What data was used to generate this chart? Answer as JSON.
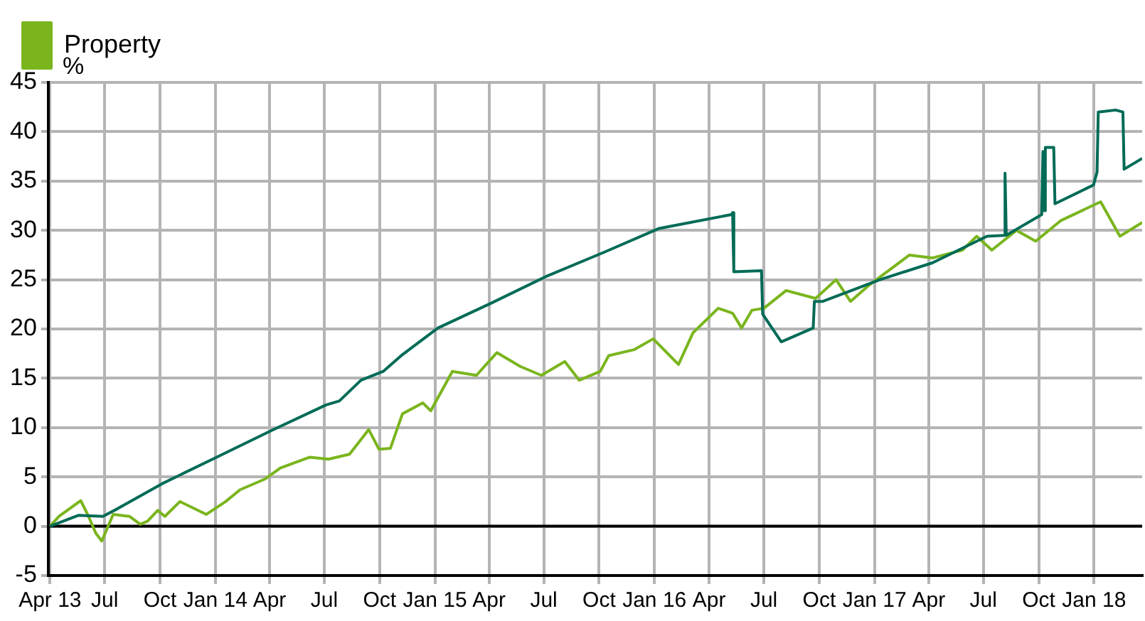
{
  "chart_data": {
    "type": "line",
    "ylabel": "%",
    "legend": "top left",
    "grid": true,
    "marker": "none",
    "line_style": "solid",
    "xlim": [
      "2013-03-29",
      "2018-03-22"
    ],
    "xticks": [
      {
        "value": "2013-04-01",
        "label": "Apr 13"
      },
      {
        "value": "2013-07-01",
        "label": "Jul"
      },
      {
        "value": "2013-10-01",
        "label": "Oct"
      },
      {
        "value": "2014-01-01",
        "label": "Jan 14"
      },
      {
        "value": "2014-04-01",
        "label": "Apr"
      },
      {
        "value": "2014-07-01",
        "label": "Jul"
      },
      {
        "value": "2014-10-01",
        "label": "Oct"
      },
      {
        "value": "2015-01-01",
        "label": "Jan 15"
      },
      {
        "value": "2015-04-01",
        "label": "Apr"
      },
      {
        "value": "2015-07-01",
        "label": "Jul"
      },
      {
        "value": "2015-10-01",
        "label": "Oct"
      },
      {
        "value": "2016-01-01",
        "label": "Jan 16"
      },
      {
        "value": "2016-04-01",
        "label": "Apr"
      },
      {
        "value": "2016-07-01",
        "label": "Jul"
      },
      {
        "value": "2016-10-01",
        "label": "Oct"
      },
      {
        "value": "2017-01-01",
        "label": "Jan 17"
      },
      {
        "value": "2017-04-01",
        "label": "Apr"
      },
      {
        "value": "2017-07-01",
        "label": "Jul"
      },
      {
        "value": "2017-10-01",
        "label": "Oct"
      },
      {
        "value": "2018-01-01",
        "label": "Jan 18"
      }
    ],
    "ylim": [
      -5,
      45
    ],
    "yticks": [
      -5,
      0,
      5,
      10,
      15,
      20,
      25,
      30,
      35,
      40,
      45
    ],
    "series": [
      {
        "color": "#006b56",
        "x": [
          "2013-04-01",
          "2013-05-18",
          "2013-06-28",
          "2013-07-23",
          "2013-10-04",
          "2014-01-03",
          "2014-04-04",
          "2014-07-04",
          "2014-07-26",
          "2014-08-31",
          "2014-10-07",
          "2014-11-08",
          "2015-01-06",
          "2015-04-04",
          "2015-07-04",
          "2015-10-10",
          "2016-01-09",
          "2016-05-08",
          "2016-05-10",
          "2016-05-12",
          "2016-06-27",
          "2016-06-29",
          "2016-07-30",
          "2016-09-21",
          "2016-09-23",
          "2016-10-07",
          "2017-01-10",
          "2017-04-07",
          "2017-07-07",
          "2017-08-05",
          "2017-08-06",
          "2017-08-08",
          "2017-10-06",
          "2017-10-08",
          "2017-10-10",
          "2017-10-12",
          "2017-10-26",
          "2017-10-28",
          "2017-12-31",
          "2018-01-06",
          "2018-01-08",
          "2018-02-06",
          "2018-02-18",
          "2018-02-20",
          "2018-03-22"
        ],
        "values": [
          0,
          1.1,
          1.0,
          1.8,
          4.3,
          7.0,
          9.7,
          12.3,
          12.7,
          14.8,
          15.7,
          17.4,
          20.1,
          22.6,
          25.3,
          27.8,
          30.2,
          31.6,
          31.8,
          25.8,
          25.9,
          21.5,
          18.7,
          20.1,
          22.8,
          22.8,
          25.0,
          26.7,
          29.4,
          29.5,
          35.8,
          29.5,
          31.6,
          38.0,
          32.0,
          38.4,
          38.4,
          32.7,
          34.6,
          35.9,
          42.0,
          42.2,
          42.0,
          36.2,
          37.3
        ]
      },
      {
        "name": "Property",
        "color": "#7ab51d",
        "x": [
          "2013-04-01",
          "2013-04-16",
          "2013-05-22",
          "2013-06-04",
          "2013-06-16",
          "2013-06-26",
          "2013-07-15",
          "2013-08-11",
          "2013-08-29",
          "2013-09-10",
          "2013-09-27",
          "2013-10-09",
          "2013-11-03",
          "2013-12-17",
          "2014-01-18",
          "2014-02-11",
          "2014-03-25",
          "2014-04-19",
          "2014-06-07",
          "2014-07-08",
          "2014-08-12",
          "2014-09-13",
          "2014-09-30",
          "2014-10-19",
          "2014-11-08",
          "2014-12-12",
          "2014-12-25",
          "2015-01-30",
          "2015-03-11",
          "2015-04-14",
          "2015-05-23",
          "2015-06-27",
          "2015-08-05",
          "2015-08-29",
          "2015-10-03",
          "2015-10-17",
          "2015-11-28",
          "2015-12-30",
          "2016-02-10",
          "2016-03-05",
          "2016-04-16",
          "2016-05-10",
          "2016-05-25",
          "2016-06-11",
          "2016-07-01",
          "2016-08-07",
          "2016-09-25",
          "2016-10-29",
          "2016-11-22",
          "2016-12-24",
          "2017-02-04",
          "2017-02-28",
          "2017-04-07",
          "2017-05-27",
          "2017-06-20",
          "2017-07-15",
          "2017-08-25",
          "2017-09-26",
          "2017-11-07",
          "2018-01-12",
          "2018-02-13",
          "2018-03-22"
        ],
        "values": [
          0,
          1.0,
          2.6,
          1.0,
          -0.7,
          -1.5,
          1.2,
          1.0,
          0.2,
          0.5,
          1.6,
          1.0,
          2.5,
          1.2,
          2.5,
          3.7,
          4.8,
          5.9,
          7.0,
          6.8,
          7.3,
          9.8,
          7.8,
          7.9,
          11.4,
          12.5,
          11.7,
          15.7,
          15.3,
          17.6,
          16.2,
          15.3,
          16.7,
          14.8,
          15.7,
          17.3,
          17.9,
          19.0,
          16.4,
          19.6,
          22.1,
          21.6,
          20.1,
          21.9,
          22.1,
          23.9,
          23.1,
          25.0,
          22.8,
          24.5,
          26.4,
          27.5,
          27.2,
          28.0,
          29.4,
          28.0,
          30.0,
          28.9,
          31.0,
          32.9,
          29.4,
          30.8
        ]
      }
    ]
  }
}
